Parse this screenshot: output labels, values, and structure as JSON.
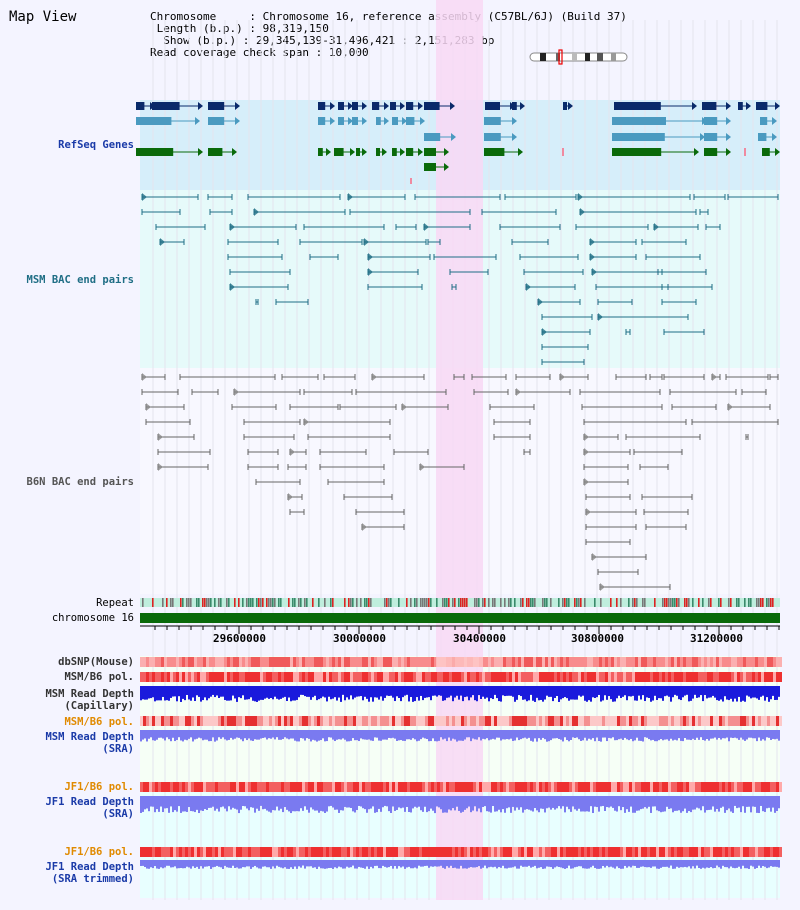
{
  "title": "Map View",
  "info": {
    "chromosome_label": "Chromosome",
    "chromosome_value": "Chromosome 16, reference assembly (C57BL/6J) (Build 37)",
    "length_label": "Length (b.p.)",
    "length_value": "98,319,150",
    "show_label": "Show (b.p.)",
    "show_value": "29,345,139-31,496,421 : 2,151,283 bp",
    "coverage_label": "Read coverage check span",
    "coverage_value": "10,000"
  },
  "tracks": {
    "refseq": "RefSeq Genes",
    "msm_bac": "MSM BAC end pairs",
    "b6n_bac": "B6N BAC end pairs",
    "repeat": "Repeat",
    "chromosome": "chromosome 16",
    "dbsnp": "dbSNP(Mouse)",
    "msm_b6_pol_1": "MSM/B6 pol.",
    "msm_read_depth_1": "MSM Read Depth",
    "msm_read_depth_1_sub": "(Capillary)",
    "msm_b6_pol_2": "MSM/B6 pol.",
    "msm_read_depth_2": "MSM Read Depth",
    "msm_read_depth_2_sub": "(SRA)",
    "jf1_b6_pol_1": "JF1/B6 pol.",
    "jf1_read_depth_1": "JF1 Read Depth",
    "jf1_read_depth_1_sub": "(SRA)",
    "jf1_b6_pol_2": "JF1/B6 pol.",
    "jf1_read_depth_2": "JF1 Read Depth",
    "jf1_read_depth_2_sub": "(SRA trimmed)"
  },
  "axis": {
    "ticks": [
      "29600000",
      "30000000",
      "30400000",
      "30800000",
      "31200000"
    ]
  },
  "colors": {
    "highlight": "#f8d8f4",
    "refseq_bg": "#d6eefa",
    "msm_bg": "#e6fafa",
    "b6n_bg": "#f8f8ff",
    "gene_dark": "#0a2a6a",
    "gene_mid": "#4a9ac0",
    "gene_green": "#0a6a0a",
    "bac_teal": "#1f6e85",
    "bac_gray": "#555555",
    "chromosome_green": "#0a6a0a",
    "depth_blue": "#1a1adc",
    "depth_light": "#7a7af0"
  }
}
